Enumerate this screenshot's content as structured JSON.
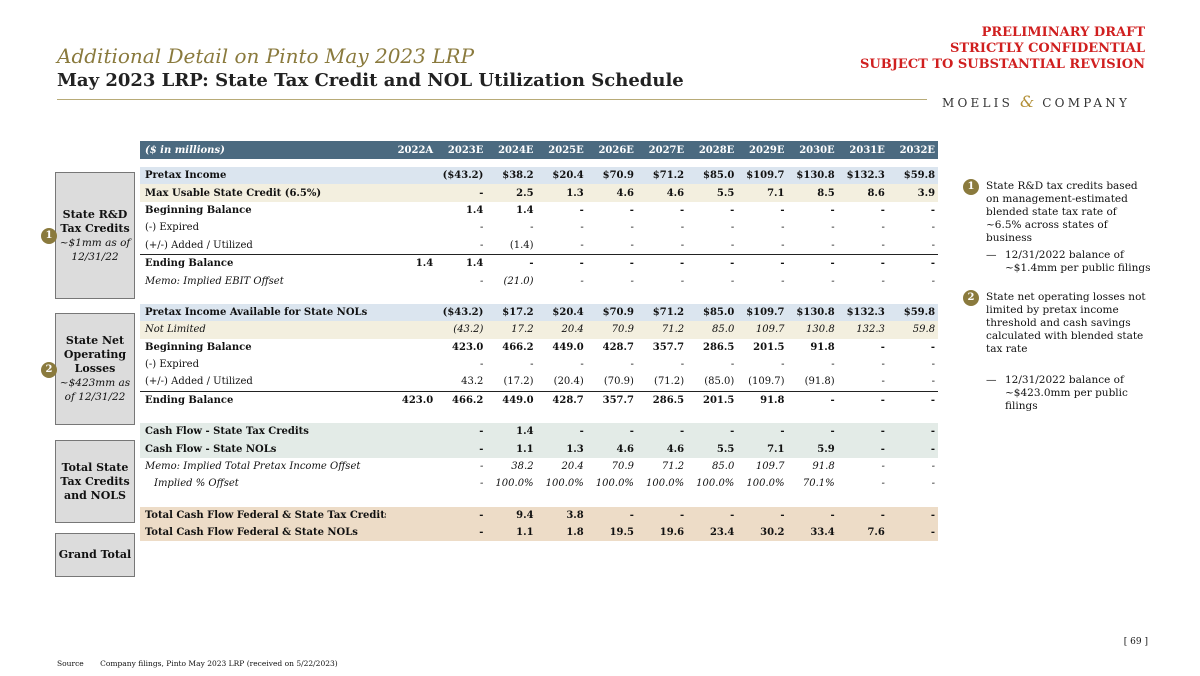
{
  "header": {
    "subtitle": "Additional Detail on Pinto May 2023 LRP",
    "title": "May 2023 LRP: State Tax Credit and NOL Utilization Schedule",
    "draft_line1": "PRELIMINARY DRAFT",
    "draft_line2": "STRICTLY CONFIDENTIAL",
    "draft_line3": "SUBJECT TO SUBSTANTIAL REVISION",
    "logo_left": "MOELIS",
    "logo_amp": "&",
    "logo_right": "COMPANY"
  },
  "colors": {
    "header_bar": "#4b6a80",
    "accent": "#8a7a3d",
    "draft": "#d01f1f"
  },
  "table": {
    "unit_label": "($ in millions)",
    "years": [
      "2022A",
      "2023E",
      "2024E",
      "2025E",
      "2026E",
      "2027E",
      "2028E",
      "2029E",
      "2030E",
      "2031E",
      "2032E"
    ],
    "sec1": {
      "pretax": {
        "label": "Pretax Income",
        "v": [
          "",
          "($43.2)",
          "$38.2",
          "$20.4",
          "$70.9",
          "$71.2",
          "$85.0",
          "$109.7",
          "$130.8",
          "$132.3",
          "$59.8"
        ]
      },
      "max_usable": {
        "label": "Max Usable State Credit (6.5%)",
        "v": [
          "",
          "-",
          "2.5",
          "1.3",
          "4.6",
          "4.6",
          "5.5",
          "7.1",
          "8.5",
          "8.6",
          "3.9"
        ]
      },
      "beg": {
        "label": "Beginning Balance",
        "v": [
          "",
          "1.4",
          "1.4",
          "-",
          "-",
          "-",
          "-",
          "-",
          "-",
          "-",
          "-"
        ]
      },
      "expired": {
        "label": "(-) Expired",
        "v": [
          "",
          "-",
          "-",
          "-",
          "-",
          "-",
          "-",
          "-",
          "-",
          "-",
          "-"
        ]
      },
      "added": {
        "label": "(+/-) Added / Utilized",
        "v": [
          "",
          "-",
          "(1.4)",
          "-",
          "-",
          "-",
          "-",
          "-",
          "-",
          "-",
          "-"
        ]
      },
      "ending": {
        "label": "Ending Balance",
        "v": [
          "1.4",
          "1.4",
          "-",
          "-",
          "-",
          "-",
          "-",
          "-",
          "-",
          "-",
          "-"
        ]
      },
      "memo": {
        "label": "Memo: Implied EBIT Offset",
        "v": [
          "",
          "-",
          "(21.0)",
          "-",
          "-",
          "-",
          "-",
          "-",
          "-",
          "-",
          "-"
        ]
      }
    },
    "sec2": {
      "pretax": {
        "label": "Pretax Income Available for State NOLs",
        "v": [
          "",
          "($43.2)",
          "$17.2",
          "$20.4",
          "$70.9",
          "$71.2",
          "$85.0",
          "$109.7",
          "$130.8",
          "$132.3",
          "$59.8"
        ]
      },
      "not_limited": {
        "label": "Not Limited",
        "v": [
          "",
          "(43.2)",
          "17.2",
          "20.4",
          "70.9",
          "71.2",
          "85.0",
          "109.7",
          "130.8",
          "132.3",
          "59.8"
        ]
      },
      "beg": {
        "label": "Beginning Balance",
        "v": [
          "",
          "423.0",
          "466.2",
          "449.0",
          "428.7",
          "357.7",
          "286.5",
          "201.5",
          "91.8",
          "-",
          "-"
        ]
      },
      "expired": {
        "label": "(-) Expired",
        "v": [
          "",
          "-",
          "-",
          "-",
          "-",
          "-",
          "-",
          "-",
          "-",
          "-",
          "-"
        ]
      },
      "added": {
        "label": "(+/-) Added / Utilized",
        "v": [
          "",
          "43.2",
          "(17.2)",
          "(20.4)",
          "(70.9)",
          "(71.2)",
          "(85.0)",
          "(109.7)",
          "(91.8)",
          "-",
          "-"
        ]
      },
      "ending": {
        "label": "Ending Balance",
        "v": [
          "423.0",
          "466.2",
          "449.0",
          "428.7",
          "357.7",
          "286.5",
          "201.5",
          "91.8",
          "-",
          "-",
          "-"
        ]
      }
    },
    "sec3": {
      "cf_credits": {
        "label": "Cash Flow - State Tax Credits",
        "v": [
          "",
          "-",
          "1.4",
          "-",
          "-",
          "-",
          "-",
          "-",
          "-",
          "-",
          "-"
        ]
      },
      "cf_nols": {
        "label": "Cash Flow - State NOLs",
        "v": [
          "",
          "-",
          "1.1",
          "1.3",
          "4.6",
          "4.6",
          "5.5",
          "7.1",
          "5.9",
          "-",
          "-"
        ]
      },
      "memo": {
        "label": "Memo: Implied Total Pretax Income Offset",
        "v": [
          "",
          "-",
          "38.2",
          "20.4",
          "70.9",
          "71.2",
          "85.0",
          "109.7",
          "91.8",
          "-",
          "-"
        ]
      },
      "pct": {
        "label": "Implied % Offset",
        "v": [
          "",
          "-",
          "100.0%",
          "100.0%",
          "100.0%",
          "100.0%",
          "100.0%",
          "100.0%",
          "70.1%",
          "-",
          "-"
        ]
      }
    },
    "sec4": {
      "fed_credits": {
        "label": "Total Cash Flow Federal & State Tax Credits",
        "v": [
          "",
          "-",
          "9.4",
          "3.8",
          "-",
          "-",
          "-",
          "-",
          "-",
          "-",
          "-"
        ]
      },
      "fed_nols": {
        "label": "Total Cash Flow Federal & State NOLs",
        "v": [
          "",
          "-",
          "1.1",
          "1.8",
          "19.5",
          "19.6",
          "23.4",
          "30.2",
          "33.4",
          "7.6",
          "-"
        ]
      }
    }
  },
  "side_labels": {
    "rd_title": "State R&D Tax Credits",
    "rd_sub": "~$1mm as of 12/31/22",
    "nol_title": "State Net Operating Losses",
    "nol_sub": "~$423mm as of 12/31/22",
    "total_title": "Total State Tax Credits and NOLS",
    "grand_title": "Grand Total"
  },
  "badges": {
    "one": "1",
    "two": "2"
  },
  "notes": {
    "n1": "State R&D tax credits based on management-estimated blended state tax rate of ~6.5% across states of business",
    "n1_dash": "—",
    "n1_sub": "12/31/2022 balance of ~$1.4mm per public filings",
    "n2": "State net operating losses not limited by pretax income threshold and cash savings calculated with blended state tax rate",
    "n2_dash": "—",
    "n2_sub": "12/31/2022 balance of ~$423.0mm per public filings"
  },
  "footer": {
    "source_label": "Source",
    "source_text": "Company filings, Pinto May 2023 LRP (received on 5/22/2023)",
    "page": "[ 69 ]"
  }
}
